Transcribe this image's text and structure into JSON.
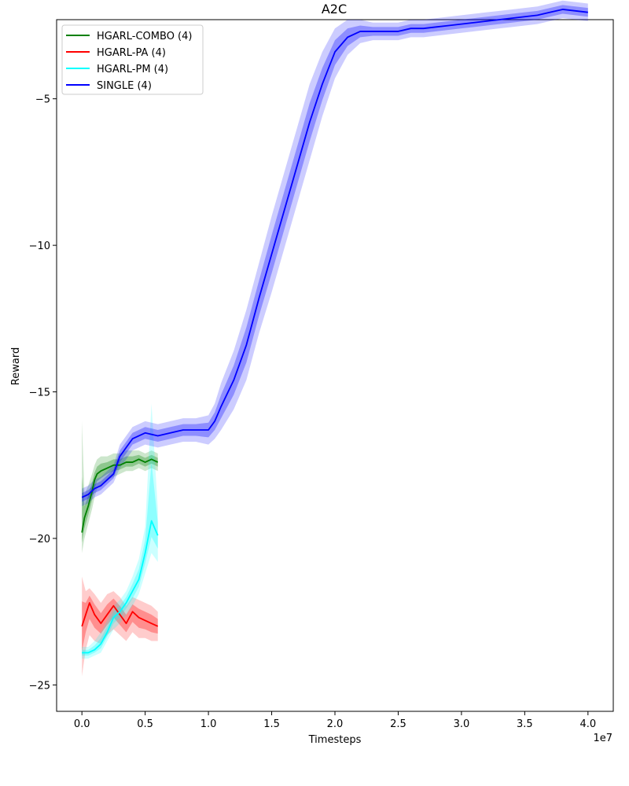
{
  "chart_data": {
    "type": "line",
    "title": "A2C",
    "xlabel": "Timesteps",
    "ylabel": "Reward",
    "x_offset_label": "1e7",
    "xlim": [
      -0.2,
      4.2
    ],
    "ylim": [
      -25.9,
      -2.3
    ],
    "xticks": [
      0.0,
      0.5,
      1.0,
      1.5,
      2.0,
      2.5,
      3.0,
      3.5,
      4.0
    ],
    "xtick_labels": [
      "0.0",
      "0.5",
      "1.0",
      "1.5",
      "2.0",
      "2.5",
      "3.0",
      "3.5",
      "4.0"
    ],
    "yticks": [
      -5,
      -10,
      -15,
      -20,
      -25
    ],
    "ytick_labels": [
      "−5",
      "−10",
      "−15",
      "−20",
      "−25"
    ],
    "grid": false,
    "legend_position": "top-left",
    "series": [
      {
        "name": "HGARL-COMBO (4)",
        "color": "#008000",
        "x": [
          0.0,
          0.02,
          0.05,
          0.08,
          0.1,
          0.12,
          0.15,
          0.2,
          0.25,
          0.3,
          0.35,
          0.4,
          0.45,
          0.5,
          0.55,
          0.6
        ],
        "y": [
          -19.8,
          -19.3,
          -18.9,
          -18.4,
          -18.0,
          -17.8,
          -17.7,
          -17.6,
          -17.5,
          -17.5,
          -17.4,
          -17.4,
          -17.3,
          -17.4,
          -17.3,
          -17.4
        ],
        "lower": [
          -20.5,
          -20.0,
          -19.5,
          -19.0,
          -18.6,
          -18.3,
          -18.2,
          -18.0,
          -17.9,
          -17.8,
          -17.7,
          -17.7,
          -17.6,
          -17.7,
          -17.6,
          -17.7
        ],
        "upper": [
          -16.0,
          -18.5,
          -18.2,
          -17.8,
          -17.5,
          -17.3,
          -17.2,
          -17.2,
          -17.1,
          -17.1,
          -17.0,
          -17.0,
          -17.0,
          -17.1,
          -17.0,
          -17.1
        ]
      },
      {
        "name": "HGARL-PA (4)",
        "color": "#ff0000",
        "x": [
          0.0,
          0.03,
          0.06,
          0.1,
          0.15,
          0.2,
          0.25,
          0.3,
          0.35,
          0.4,
          0.45,
          0.5,
          0.55,
          0.6
        ],
        "y": [
          -23.0,
          -22.6,
          -22.2,
          -22.6,
          -22.9,
          -22.6,
          -22.3,
          -22.6,
          -22.9,
          -22.5,
          -22.7,
          -22.8,
          -22.9,
          -23.0
        ],
        "lower": [
          -24.7,
          -23.8,
          -23.3,
          -23.5,
          -23.6,
          -23.3,
          -23.1,
          -23.3,
          -23.5,
          -23.2,
          -23.4,
          -23.4,
          -23.5,
          -23.5
        ],
        "upper": [
          -21.3,
          -21.8,
          -21.7,
          -21.9,
          -22.2,
          -21.9,
          -21.8,
          -22.0,
          -22.3,
          -22.0,
          -22.1,
          -22.2,
          -22.3,
          -22.5
        ]
      },
      {
        "name": "HGARL-PM (4)",
        "color": "#00ffff",
        "x": [
          0.0,
          0.05,
          0.1,
          0.15,
          0.2,
          0.25,
          0.3,
          0.35,
          0.4,
          0.45,
          0.5,
          0.55,
          0.6
        ],
        "y": [
          -23.9,
          -23.9,
          -23.8,
          -23.6,
          -23.2,
          -22.7,
          -22.5,
          -22.2,
          -21.8,
          -21.4,
          -20.5,
          -19.4,
          -19.9
        ],
        "lower": [
          -24.1,
          -24.1,
          -24.0,
          -23.9,
          -23.5,
          -23.1,
          -22.9,
          -22.6,
          -22.3,
          -21.9,
          -21.2,
          -20.5,
          -20.8
        ],
        "upper": [
          -23.7,
          -23.7,
          -23.5,
          -23.2,
          -22.8,
          -22.3,
          -22.1,
          -21.8,
          -21.3,
          -20.7,
          -19.6,
          -15.4,
          -19.0
        ]
      },
      {
        "name": "SINGLE (4)",
        "color": "#0000ff",
        "x": [
          0.0,
          0.05,
          0.1,
          0.15,
          0.2,
          0.25,
          0.3,
          0.35,
          0.4,
          0.5,
          0.6,
          0.7,
          0.8,
          0.9,
          1.0,
          1.05,
          1.1,
          1.2,
          1.3,
          1.4,
          1.5,
          1.6,
          1.7,
          1.8,
          1.9,
          2.0,
          2.1,
          2.2,
          2.3,
          2.4,
          2.5,
          2.6,
          2.7,
          2.8,
          2.9,
          3.0,
          3.1,
          3.2,
          3.3,
          3.4,
          3.5,
          3.6,
          3.7,
          3.8,
          3.9,
          4.0
        ],
        "y": [
          -18.6,
          -18.5,
          -18.3,
          -18.2,
          -18.0,
          -17.8,
          -17.2,
          -16.9,
          -16.6,
          -16.4,
          -16.5,
          -16.4,
          -16.3,
          -16.3,
          -16.3,
          -16.0,
          -15.5,
          -14.6,
          -13.4,
          -11.8,
          -10.3,
          -8.8,
          -7.3,
          -5.8,
          -4.5,
          -3.4,
          -2.9,
          -2.7,
          -2.7,
          -2.7,
          -2.7,
          -2.6,
          -2.6,
          -2.55,
          -2.5,
          -2.45,
          -2.4,
          -2.35,
          -2.3,
          -2.25,
          -2.2,
          -2.15,
          -2.05,
          -1.95,
          -2.0,
          -2.05
        ],
        "lower": [
          -18.9,
          -18.8,
          -18.6,
          -18.5,
          -18.3,
          -18.1,
          -17.6,
          -17.3,
          -17.0,
          -16.8,
          -16.9,
          -16.8,
          -16.7,
          -16.7,
          -16.8,
          -16.6,
          -16.3,
          -15.6,
          -14.6,
          -13.0,
          -11.6,
          -10.1,
          -8.6,
          -7.1,
          -5.6,
          -4.3,
          -3.5,
          -3.1,
          -3.0,
          -3.0,
          -3.0,
          -2.9,
          -2.9,
          -2.85,
          -2.8,
          -2.75,
          -2.7,
          -2.65,
          -2.6,
          -2.55,
          -2.5,
          -2.45,
          -2.35,
          -2.25,
          -2.3,
          -2.35
        ],
        "upper": [
          -18.3,
          -18.2,
          -18.0,
          -17.9,
          -17.7,
          -17.5,
          -16.8,
          -16.5,
          -16.2,
          -16.0,
          -16.1,
          -16.0,
          -15.9,
          -15.9,
          -15.8,
          -15.4,
          -14.7,
          -13.6,
          -12.2,
          -10.6,
          -9.0,
          -7.5,
          -6.0,
          -4.5,
          -3.4,
          -2.6,
          -2.3,
          -2.3,
          -2.4,
          -2.4,
          -2.4,
          -2.3,
          -2.3,
          -2.25,
          -2.2,
          -2.15,
          -2.1,
          -2.05,
          -2.0,
          -1.95,
          -1.9,
          -1.85,
          -1.75,
          -1.65,
          -1.7,
          -1.75
        ]
      }
    ]
  }
}
